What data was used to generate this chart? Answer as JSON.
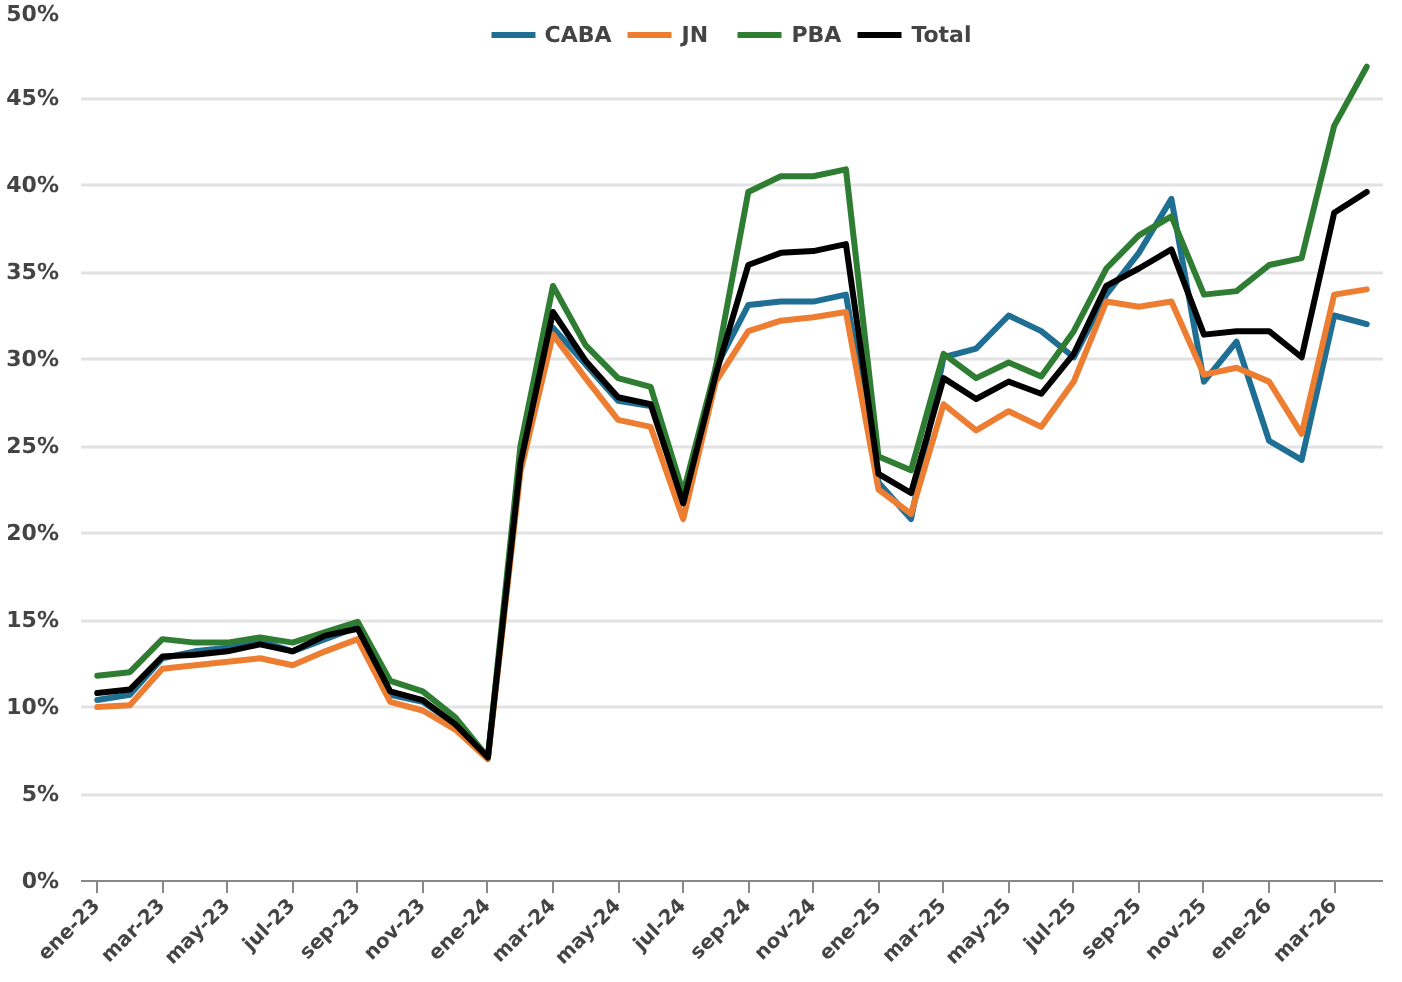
{
  "chart_data": {
    "type": "line",
    "categories": [
      "ene-23",
      null,
      "mar-23",
      null,
      "may-23",
      null,
      "jul-23",
      null,
      "sep-23",
      null,
      "nov-23",
      null,
      "ene-24",
      null,
      "mar-24",
      null,
      "may-24",
      null,
      "jul-24",
      null,
      "sep-24",
      null,
      "nov-24",
      null,
      "ene-25",
      null,
      "mar-25",
      null,
      "may-25",
      null,
      "jul-25",
      null,
      "sep-25",
      null,
      "nov-25",
      null,
      "ene-26",
      null,
      "mar-26",
      null
    ],
    "series": [
      {
        "name": "CABA",
        "color": "#1f6e94",
        "values": [
          10.4,
          10.7,
          12.8,
          13.2,
          13.4,
          13.8,
          13.2,
          13.9,
          14.6,
          10.7,
          10.3,
          9.0,
          7.1,
          24.0,
          31.8,
          29.7,
          27.6,
          27.3,
          null,
          29.5,
          33.1,
          33.3,
          33.3,
          33.7,
          22.9,
          20.8,
          30.1,
          30.6,
          32.5,
          31.6,
          30.1,
          33.7,
          36.1,
          39.2,
          28.7,
          31.0,
          25.3,
          24.2,
          32.5,
          32.0
        ]
      },
      {
        "name": "JN",
        "color": "#ed7d31",
        "values": [
          10.0,
          10.1,
          12.2,
          12.4,
          12.6,
          12.8,
          12.4,
          13.2,
          13.9,
          10.3,
          9.8,
          8.7,
          7.0,
          23.5,
          31.4,
          28.9,
          26.5,
          26.1,
          20.8,
          28.7,
          31.6,
          32.2,
          32.4,
          32.7,
          22.5,
          21.1,
          27.4,
          25.9,
          27.0,
          26.1,
          28.7,
          33.3,
          33.0,
          33.3,
          29.1,
          29.5,
          28.7,
          25.7,
          33.7,
          34.0
        ]
      },
      {
        "name": "PBA",
        "color": "#2e7d32",
        "values": [
          11.8,
          12.0,
          13.9,
          13.7,
          13.7,
          14.0,
          13.7,
          14.3,
          14.9,
          11.5,
          10.9,
          9.4,
          7.1,
          25.0,
          34.2,
          30.8,
          28.9,
          28.4,
          22.3,
          29.5,
          39.6,
          40.5,
          40.5,
          40.9,
          24.4,
          23.6,
          30.3,
          28.9,
          29.8,
          29.0,
          31.6,
          35.2,
          37.1,
          38.2,
          33.7,
          33.9,
          35.4,
          35.8,
          43.4,
          46.8
        ]
      },
      {
        "name": "Total",
        "color": "#000000",
        "values": [
          10.8,
          11.0,
          12.9,
          13.0,
          13.2,
          13.6,
          13.2,
          14.1,
          14.5,
          10.9,
          10.4,
          9.0,
          7.1,
          24.0,
          32.7,
          29.9,
          27.8,
          27.4,
          21.7,
          29.1,
          35.4,
          36.1,
          36.2,
          36.6,
          23.4,
          22.3,
          28.9,
          27.7,
          28.7,
          28.0,
          30.3,
          34.2,
          35.2,
          36.3,
          31.4,
          31.6,
          31.6,
          30.1,
          38.4,
          39.6
        ]
      }
    ],
    "ylim": [
      0,
      50
    ],
    "yticks": [
      {
        "value": 0,
        "label": "0%"
      },
      {
        "value": 5,
        "label": "5%"
      },
      {
        "value": 10,
        "label": "10%"
      },
      {
        "value": 15,
        "label": "15%"
      },
      {
        "value": 20,
        "label": "20%"
      },
      {
        "value": 25,
        "label": "25%"
      },
      {
        "value": 30,
        "label": "30%"
      },
      {
        "value": 35,
        "label": "35%"
      },
      {
        "value": 40,
        "label": "40%"
      },
      {
        "value": 45,
        "label": "45%"
      },
      {
        "value": 50,
        "label": "50%"
      }
    ],
    "grid": "y",
    "legend": "top",
    "marker": "none",
    "line_style": "solid"
  }
}
